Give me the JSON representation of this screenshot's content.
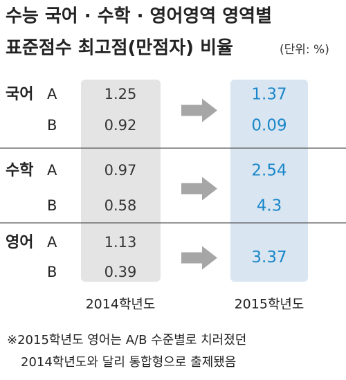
{
  "header": {
    "title": [
      "수능 국어 · 수학 · 영어영역 영역별",
      "표준점수 최고점(만점자) 비율"
    ],
    "unit": "(단위: %)"
  },
  "table": {
    "columns": [
      "2014학년도",
      "2015학년도"
    ],
    "groups": [
      {
        "subject": "국어",
        "rows": [
          {
            "level": "A",
            "y2014": 1.25,
            "y2015": 1.37
          },
          {
            "level": "B",
            "y2014": 0.92,
            "y2015": 0.09
          }
        ]
      },
      {
        "subject": "수학",
        "rows": [
          {
            "level": "A",
            "y2014": 0.97,
            "y2015": 2.54
          },
          {
            "level": "B",
            "y2014": 0.58,
            "y2015": 4.3
          }
        ]
      },
      {
        "subject": "영어",
        "rows": [
          {
            "level": "A",
            "y2014": 1.13
          },
          {
            "level": "B",
            "y2014": 0.39
          }
        ],
        "y2015": 3.37
      }
    ]
  },
  "note": [
    "※2015학년도 영어는 A/B 수준별로 치러졌던",
    "2014학년도와 달리 통합형으로 출제됐음"
  ]
}
